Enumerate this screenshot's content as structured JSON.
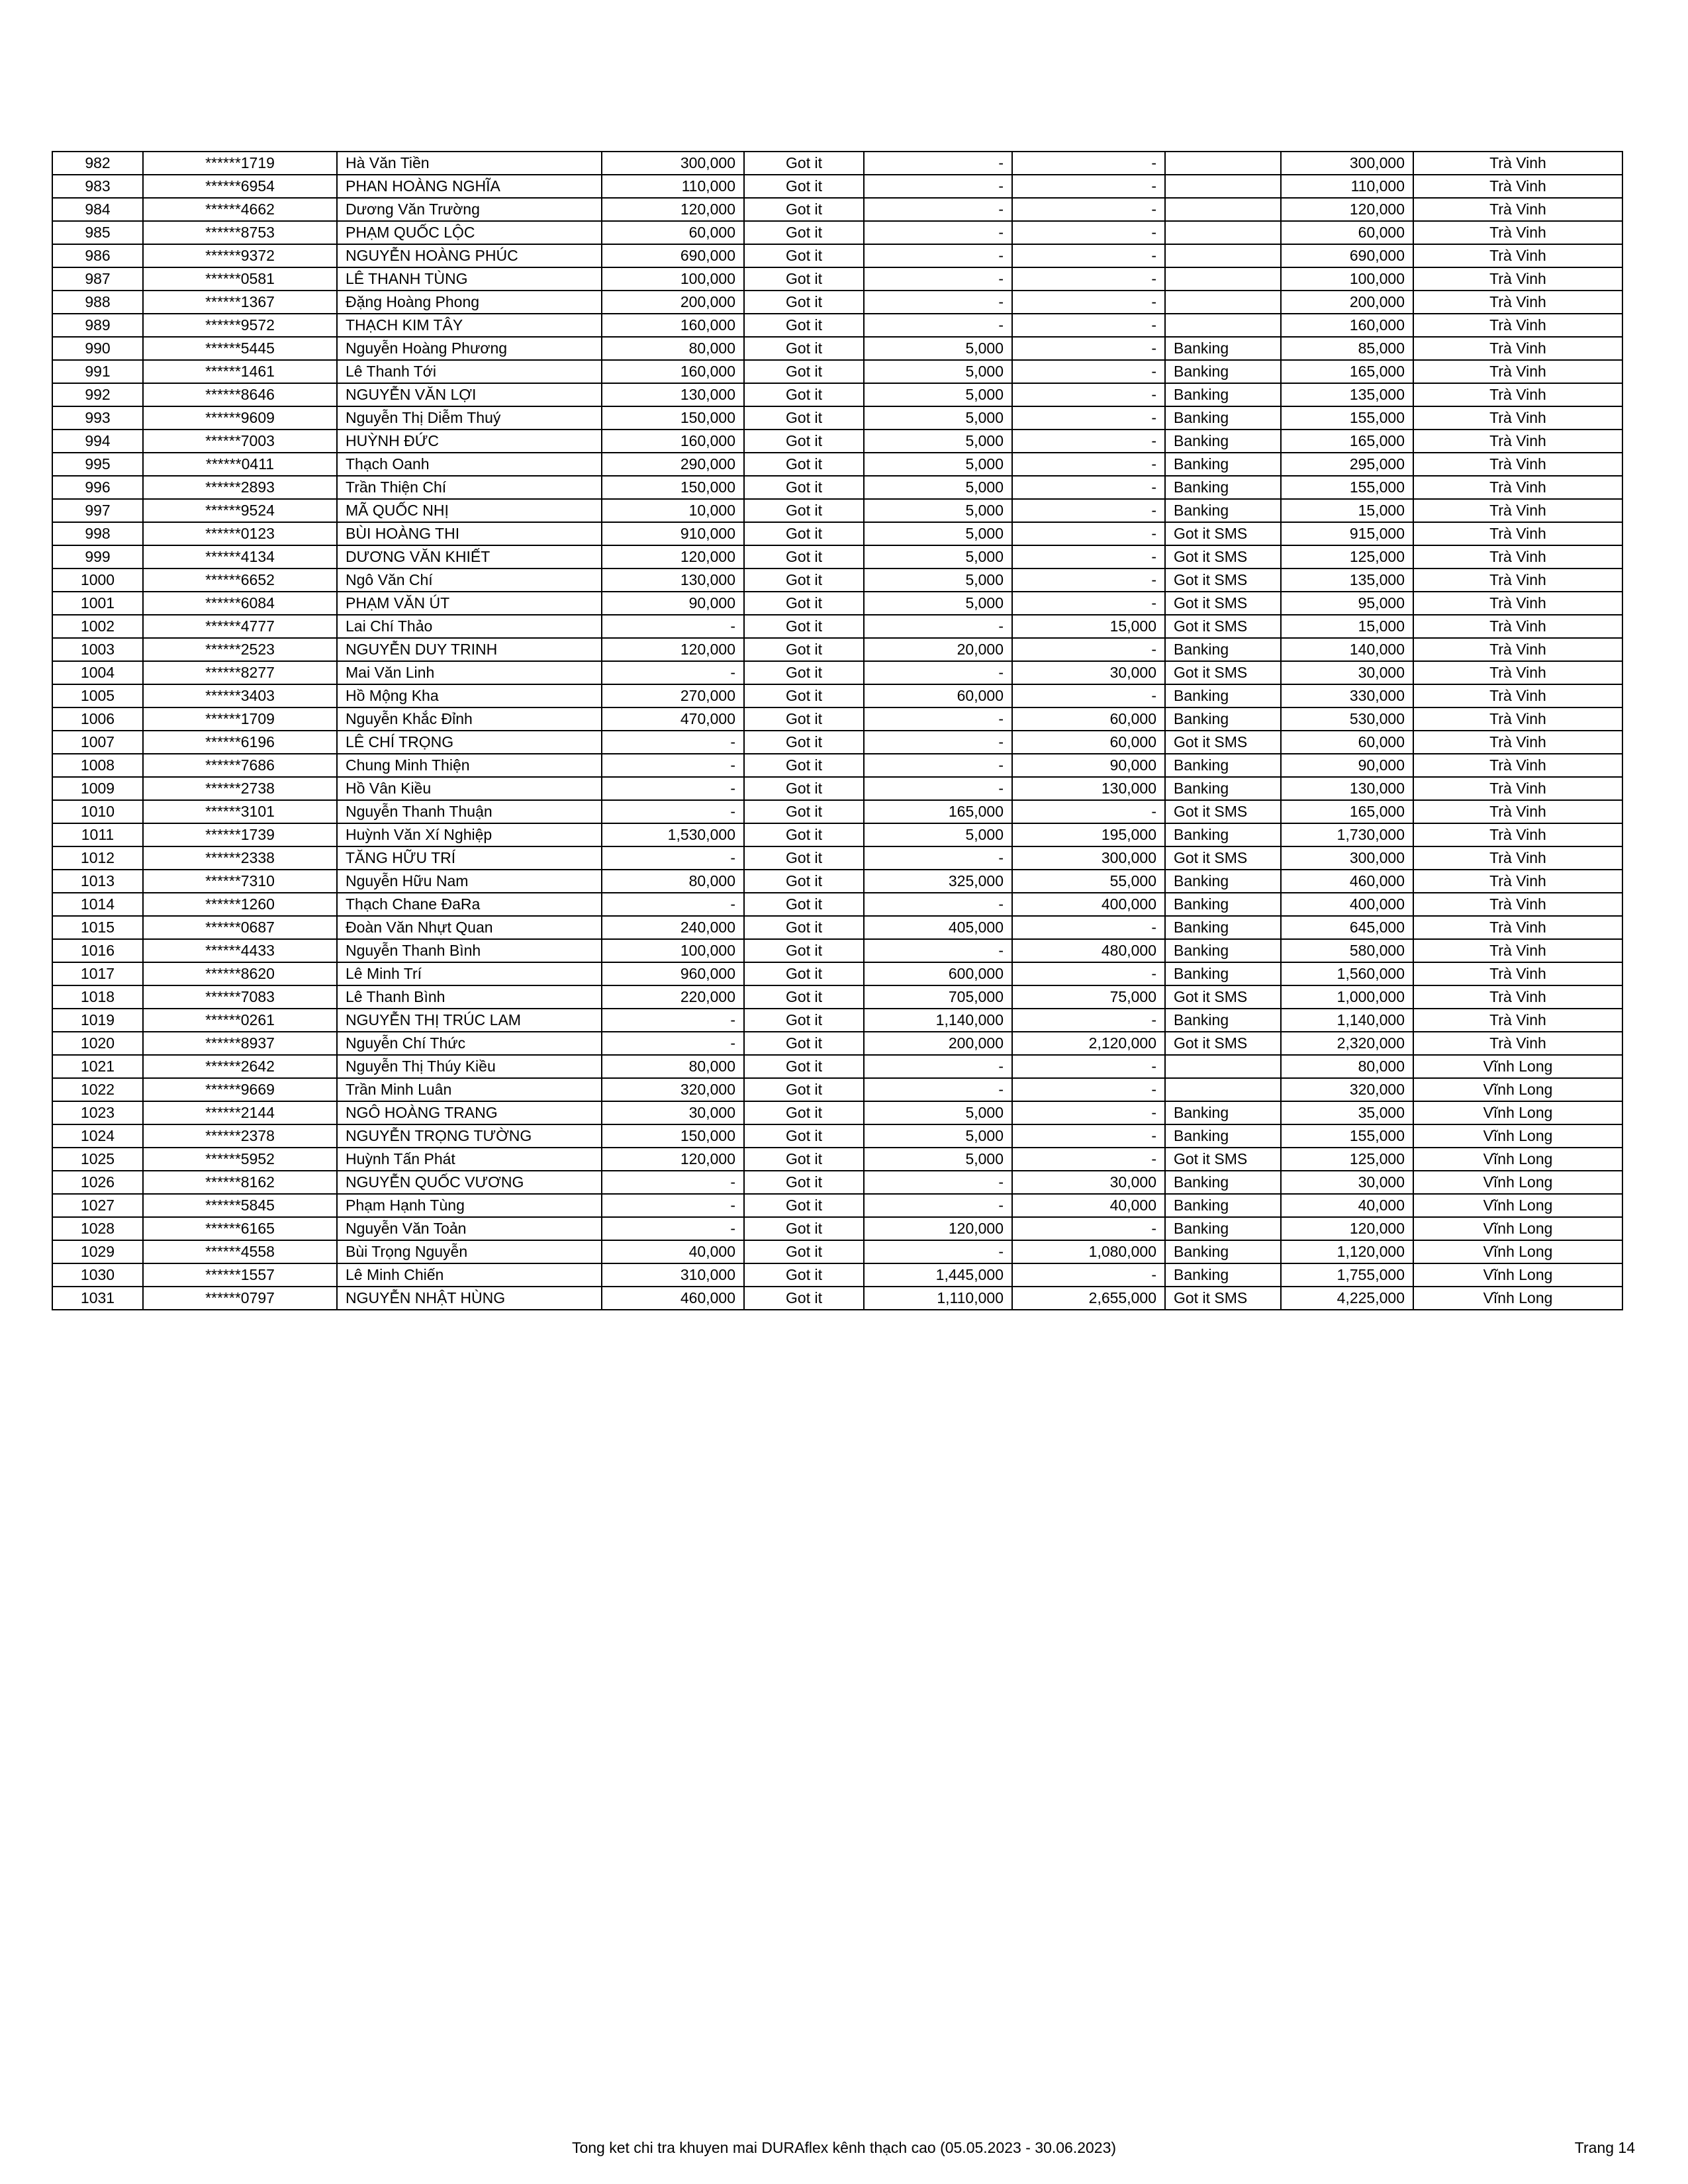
{
  "rows": [
    [
      "982",
      "******1719",
      "Hà Văn Tiền",
      "300,000",
      "Got it",
      "-",
      "-",
      "",
      "300,000",
      "Trà Vinh"
    ],
    [
      "983",
      "******6954",
      "PHAN HOÀNG NGHĨA",
      "110,000",
      "Got it",
      "-",
      "-",
      "",
      "110,000",
      "Trà Vinh"
    ],
    [
      "984",
      "******4662",
      "Dương Văn Trường",
      "120,000",
      "Got it",
      "-",
      "-",
      "",
      "120,000",
      "Trà Vinh"
    ],
    [
      "985",
      "******8753",
      "PHẠM QUỐC LỘC",
      "60,000",
      "Got it",
      "-",
      "-",
      "",
      "60,000",
      "Trà Vinh"
    ],
    [
      "986",
      "******9372",
      "NGUYỄN HOÀNG PHÚC",
      "690,000",
      "Got it",
      "-",
      "-",
      "",
      "690,000",
      "Trà Vinh"
    ],
    [
      "987",
      "******0581",
      "LÊ THANH TÙNG",
      "100,000",
      "Got it",
      "-",
      "-",
      "",
      "100,000",
      "Trà Vinh"
    ],
    [
      "988",
      "******1367",
      "Đặng Hoàng Phong",
      "200,000",
      "Got it",
      "-",
      "-",
      "",
      "200,000",
      "Trà Vinh"
    ],
    [
      "989",
      "******9572",
      "THẠCH KIM TÂY",
      "160,000",
      "Got it",
      "-",
      "-",
      "",
      "160,000",
      "Trà Vinh"
    ],
    [
      "990",
      "******5445",
      "Nguyễn Hoàng Phương",
      "80,000",
      "Got it",
      "5,000",
      "-",
      "Banking",
      "85,000",
      "Trà Vinh"
    ],
    [
      "991",
      "******1461",
      "Lê Thanh Tới",
      "160,000",
      "Got it",
      "5,000",
      "-",
      "Banking",
      "165,000",
      "Trà Vinh"
    ],
    [
      "992",
      "******8646",
      "NGUYỄN VĂN LỢI",
      "130,000",
      "Got it",
      "5,000",
      "-",
      "Banking",
      "135,000",
      "Trà Vinh"
    ],
    [
      "993",
      "******9609",
      "Nguyễn Thị Diễm Thuý",
      "150,000",
      "Got it",
      "5,000",
      "-",
      "Banking",
      "155,000",
      "Trà Vinh"
    ],
    [
      "994",
      "******7003",
      "HUỲNH ĐỨC",
      "160,000",
      "Got it",
      "5,000",
      "-",
      "Banking",
      "165,000",
      "Trà Vinh"
    ],
    [
      "995",
      "******0411",
      "Thạch Oanh",
      "290,000",
      "Got it",
      "5,000",
      "-",
      "Banking",
      "295,000",
      "Trà Vinh"
    ],
    [
      "996",
      "******2893",
      "Trần Thiện Chí",
      "150,000",
      "Got it",
      "5,000",
      "-",
      "Banking",
      "155,000",
      "Trà Vinh"
    ],
    [
      "997",
      "******9524",
      "MÃ QUỐC NHỊ",
      "10,000",
      "Got it",
      "5,000",
      "-",
      "Banking",
      "15,000",
      "Trà Vinh"
    ],
    [
      "998",
      "******0123",
      "BÙI HOÀNG THI",
      "910,000",
      "Got it",
      "5,000",
      "-",
      "Got it SMS",
      "915,000",
      "Trà Vinh"
    ],
    [
      "999",
      "******4134",
      "DƯƠNG VĂN KHIẾT",
      "120,000",
      "Got it",
      "5,000",
      "-",
      "Got it SMS",
      "125,000",
      "Trà Vinh"
    ],
    [
      "1000",
      "******6652",
      "Ngô Văn Chí",
      "130,000",
      "Got it",
      "5,000",
      "-",
      "Got it SMS",
      "135,000",
      "Trà Vinh"
    ],
    [
      "1001",
      "******6084",
      "PHẠM VĂN ÚT",
      "90,000",
      "Got it",
      "5,000",
      "-",
      "Got it SMS",
      "95,000",
      "Trà Vinh"
    ],
    [
      "1002",
      "******4777",
      "Lai Chí Thảo",
      "-",
      "Got it",
      "-",
      "15,000",
      "Got it SMS",
      "15,000",
      "Trà Vinh"
    ],
    [
      "1003",
      "******2523",
      "NGUYỄN DUY TRINH",
      "120,000",
      "Got it",
      "20,000",
      "-",
      "Banking",
      "140,000",
      "Trà Vinh"
    ],
    [
      "1004",
      "******8277",
      "Mai Văn Linh",
      "-",
      "Got it",
      "-",
      "30,000",
      "Got it SMS",
      "30,000",
      "Trà Vinh"
    ],
    [
      "1005",
      "******3403",
      "Hồ Mộng Kha",
      "270,000",
      "Got it",
      "60,000",
      "-",
      "Banking",
      "330,000",
      "Trà Vinh"
    ],
    [
      "1006",
      "******1709",
      "Nguyễn Khắc Đỉnh",
      "470,000",
      "Got it",
      "-",
      "60,000",
      "Banking",
      "530,000",
      "Trà Vinh"
    ],
    [
      "1007",
      "******6196",
      "LÊ CHÍ TRỌNG",
      "-",
      "Got it",
      "-",
      "60,000",
      "Got it SMS",
      "60,000",
      "Trà Vinh"
    ],
    [
      "1008",
      "******7686",
      "Chung Minh Thiện",
      "-",
      "Got it",
      "-",
      "90,000",
      "Banking",
      "90,000",
      "Trà Vinh"
    ],
    [
      "1009",
      "******2738",
      "Hồ Vân Kiều",
      "-",
      "Got it",
      "-",
      "130,000",
      "Banking",
      "130,000",
      "Trà Vinh"
    ],
    [
      "1010",
      "******3101",
      "Nguyễn Thanh Thuận",
      "-",
      "Got it",
      "165,000",
      "-",
      "Got it SMS",
      "165,000",
      "Trà Vinh"
    ],
    [
      "1011",
      "******1739",
      "Huỳnh Văn Xí Nghiệp",
      "1,530,000",
      "Got it",
      "5,000",
      "195,000",
      "Banking",
      "1,730,000",
      "Trà Vinh"
    ],
    [
      "1012",
      "******2338",
      "TĂNG HỮU TRÍ",
      "-",
      "Got it",
      "-",
      "300,000",
      "Got it SMS",
      "300,000",
      "Trà Vinh"
    ],
    [
      "1013",
      "******7310",
      "Nguyễn Hữu Nam",
      "80,000",
      "Got it",
      "325,000",
      "55,000",
      "Banking",
      "460,000",
      "Trà Vinh"
    ],
    [
      "1014",
      "******1260",
      "Thạch Chane ĐaRa",
      "-",
      "Got it",
      "-",
      "400,000",
      "Banking",
      "400,000",
      "Trà Vinh"
    ],
    [
      "1015",
      "******0687",
      "Đoàn Văn Nhựt Quan",
      "240,000",
      "Got it",
      "405,000",
      "-",
      "Banking",
      "645,000",
      "Trà Vinh"
    ],
    [
      "1016",
      "******4433",
      "Nguyễn Thanh Bình",
      "100,000",
      "Got it",
      "-",
      "480,000",
      "Banking",
      "580,000",
      "Trà Vinh"
    ],
    [
      "1017",
      "******8620",
      "Lê Minh Trí",
      "960,000",
      "Got it",
      "600,000",
      "-",
      "Banking",
      "1,560,000",
      "Trà Vinh"
    ],
    [
      "1018",
      "******7083",
      "Lê Thanh Bình",
      "220,000",
      "Got it",
      "705,000",
      "75,000",
      "Got it SMS",
      "1,000,000",
      "Trà Vinh"
    ],
    [
      "1019",
      "******0261",
      "NGUYỄN THỊ TRÚC LAM",
      "-",
      "Got it",
      "1,140,000",
      "-",
      "Banking",
      "1,140,000",
      "Trà Vinh"
    ],
    [
      "1020",
      "******8937",
      "Nguyễn Chí Thức",
      "-",
      "Got it",
      "200,000",
      "2,120,000",
      "Got it SMS",
      "2,320,000",
      "Trà Vinh"
    ],
    [
      "1021",
      "******2642",
      "Nguyễn Thị Thúy Kiều",
      "80,000",
      "Got it",
      "-",
      "-",
      "",
      "80,000",
      "Vĩnh Long"
    ],
    [
      "1022",
      "******9669",
      "Trần Minh Luân",
      "320,000",
      "Got it",
      "-",
      "-",
      "",
      "320,000",
      "Vĩnh Long"
    ],
    [
      "1023",
      "******2144",
      "NGÔ HOÀNG TRANG",
      "30,000",
      "Got it",
      "5,000",
      "-",
      "Banking",
      "35,000",
      "Vĩnh Long"
    ],
    [
      "1024",
      "******2378",
      "NGUYỄN TRỌNG TƯỜNG",
      "150,000",
      "Got it",
      "5,000",
      "-",
      "Banking",
      "155,000",
      "Vĩnh Long"
    ],
    [
      "1025",
      "******5952",
      "Huỳnh Tấn Phát",
      "120,000",
      "Got it",
      "5,000",
      "-",
      "Got it SMS",
      "125,000",
      "Vĩnh Long"
    ],
    [
      "1026",
      "******8162",
      "NGUYỄN QUỐC VƯƠNG",
      "-",
      "Got it",
      "-",
      "30,000",
      "Banking",
      "30,000",
      "Vĩnh Long"
    ],
    [
      "1027",
      "******5845",
      "Phạm Hạnh Tùng",
      "-",
      "Got it",
      "-",
      "40,000",
      "Banking",
      "40,000",
      "Vĩnh Long"
    ],
    [
      "1028",
      "******6165",
      "Nguyễn Văn Toản",
      "-",
      "Got it",
      "120,000",
      "-",
      "Banking",
      "120,000",
      "Vĩnh Long"
    ],
    [
      "1029",
      "******4558",
      "Bùi Trọng Nguyễn",
      "40,000",
      "Got it",
      "-",
      "1,080,000",
      "Banking",
      "1,120,000",
      "Vĩnh Long"
    ],
    [
      "1030",
      "******1557",
      "Lê Minh Chiến",
      "310,000",
      "Got it",
      "1,445,000",
      "-",
      "Banking",
      "1,755,000",
      "Vĩnh Long"
    ],
    [
      "1031",
      "******0797",
      "NGUYỄN NHẬT HÙNG",
      "460,000",
      "Got it",
      "1,110,000",
      "2,655,000",
      "Got it SMS",
      "4,225,000",
      "Vĩnh Long"
    ]
  ],
  "footer": {
    "title": "Tong ket chi tra khuyen mai DURAflex kênh thạch cao (05.05.2023 - 30.06.2023)",
    "page": "Trang 14"
  }
}
